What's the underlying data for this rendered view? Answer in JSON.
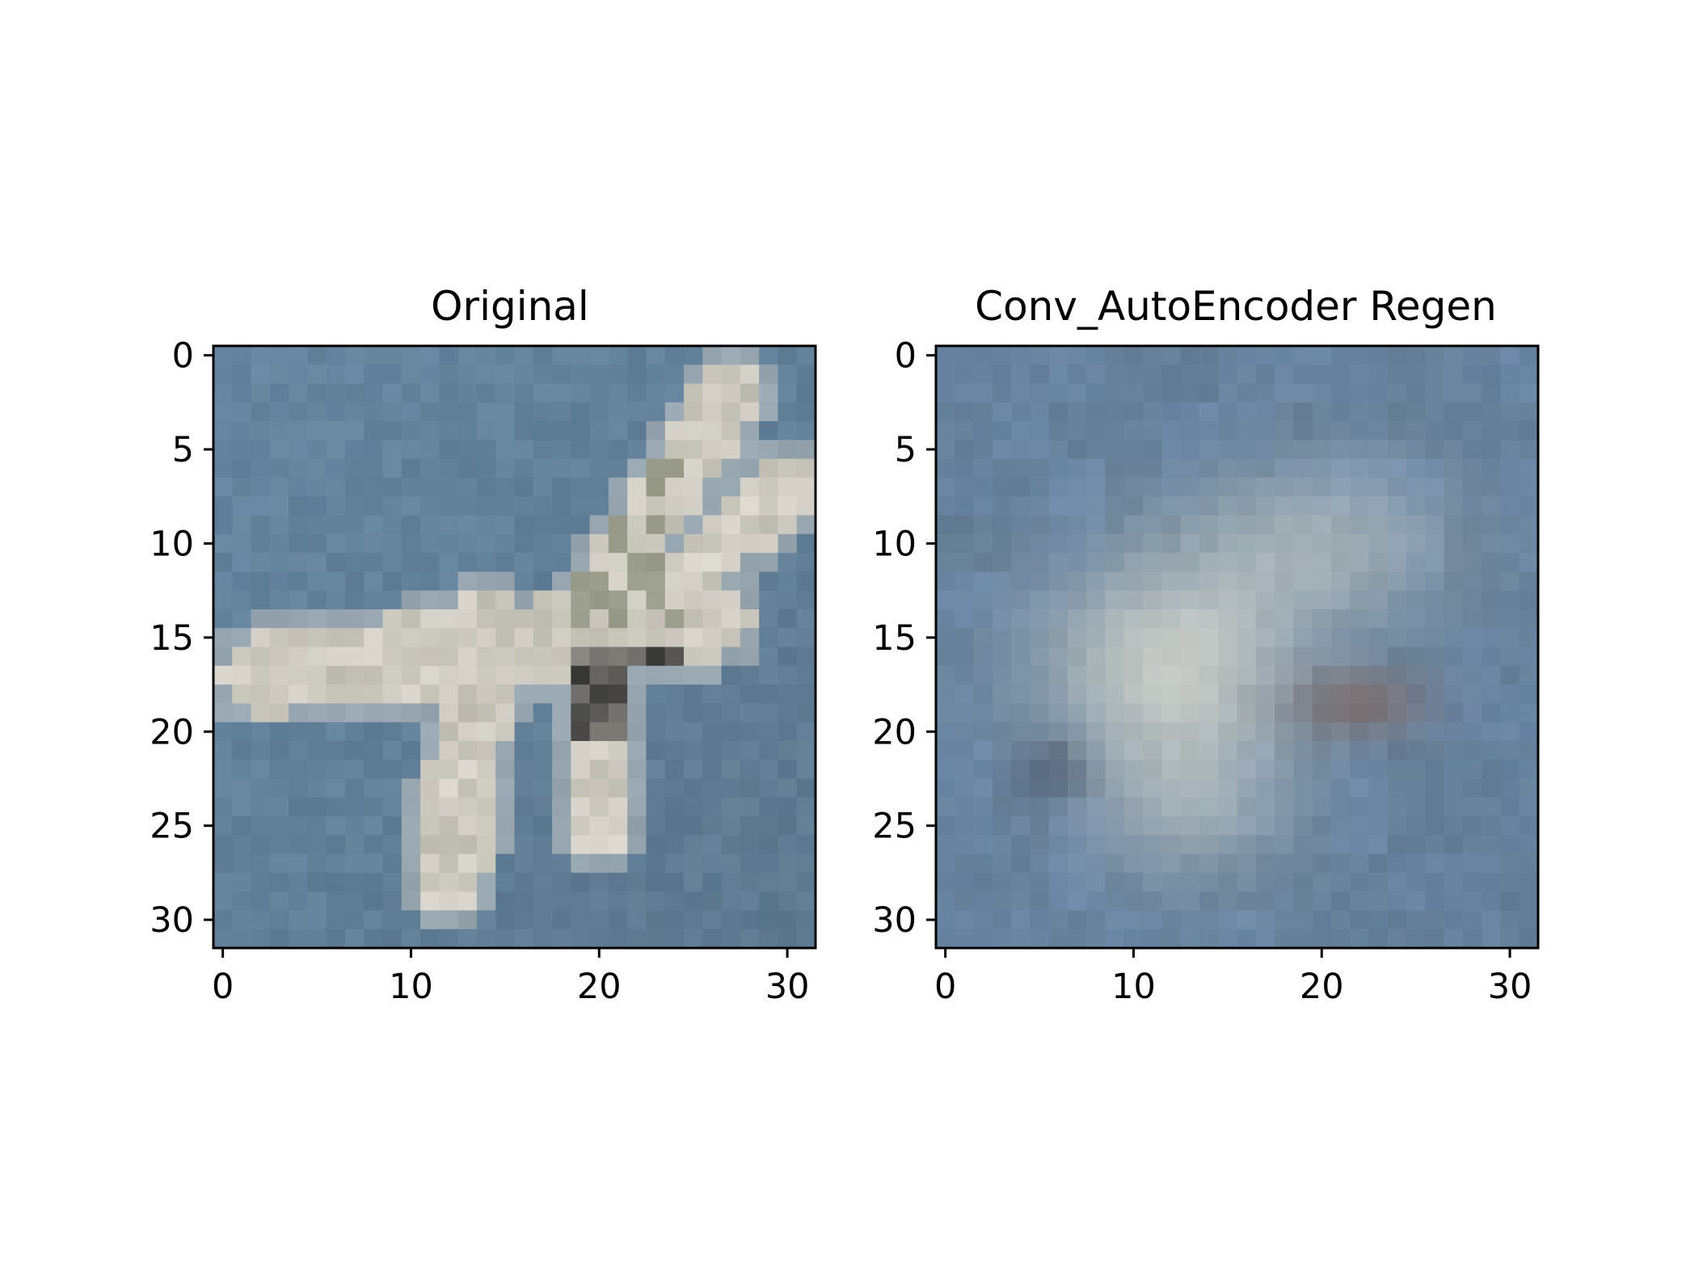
{
  "chart_data": [
    {
      "type": "heatmap",
      "title": "Original",
      "xlabel": "",
      "ylabel": "",
      "xlim": [
        -0.5,
        31.5
      ],
      "ylim": [
        31.5,
        -0.5
      ],
      "xticks": [
        0,
        10,
        20,
        30
      ],
      "yticks": [
        0,
        5,
        10,
        15,
        20,
        25,
        30
      ],
      "grid": false,
      "image": "32x32 RGB image of a fighter jet against a blue sky",
      "colors": {
        "sky": "#6585a0",
        "plane_light": "#d8d4cc",
        "plane_dark": "#3a3a38"
      }
    },
    {
      "type": "heatmap",
      "title": "Conv_AutoEncoder Regen",
      "xlabel": "",
      "ylabel": "",
      "xlim": [
        -0.5,
        31.5
      ],
      "ylim": [
        31.5,
        -0.5
      ],
      "xticks": [
        0,
        10,
        20,
        30
      ],
      "yticks": [
        0,
        5,
        10,
        15,
        20,
        25,
        30
      ],
      "grid": false,
      "image": "32x32 blurred RGB reconstruction of the jet image",
      "colors": {
        "sky": "#6a86a6",
        "blob_light": "#c8ccc6",
        "blob_dark": "#7a6c68"
      }
    }
  ]
}
